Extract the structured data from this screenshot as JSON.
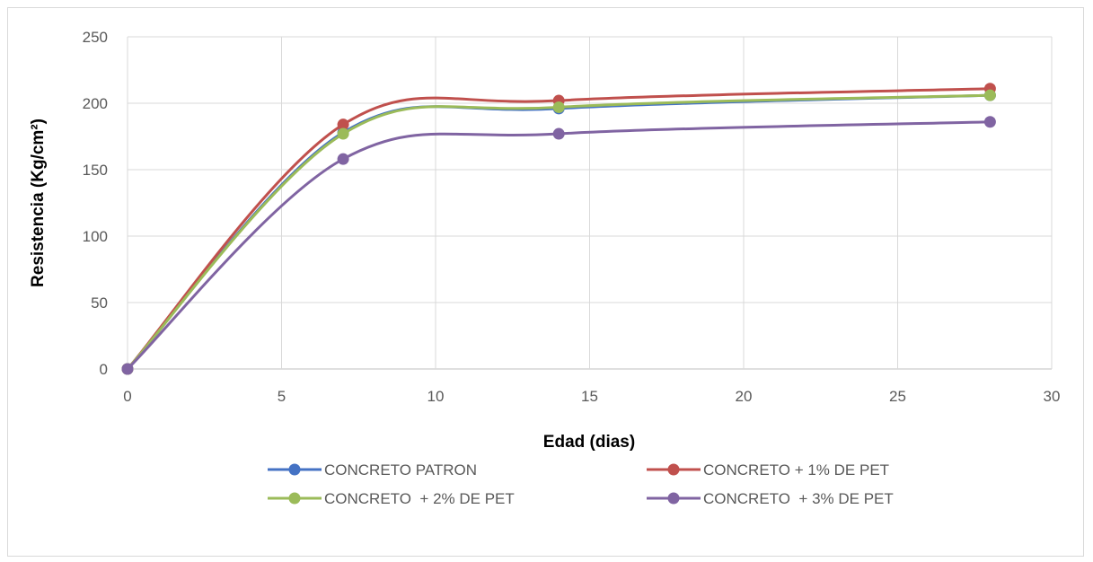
{
  "chart_data": {
    "type": "line",
    "xlabel": "Edad (dias)",
    "ylabel": "Resistencia  (Kg/cm²)",
    "xlim": [
      0,
      30
    ],
    "ylim": [
      0,
      250
    ],
    "x_ticks": [
      "0",
      "5",
      "10",
      "15",
      "20",
      "25",
      "30"
    ],
    "y_ticks": [
      "0",
      "50",
      "100",
      "150",
      "200",
      "250"
    ],
    "grid": true,
    "legend_position": "bottom",
    "smoothed": true,
    "series": [
      {
        "name": "CONCRETO PATRON",
        "color": "#4472c4",
        "x": [
          0,
          7,
          14,
          28
        ],
        "y": [
          0,
          178,
          196,
          206
        ]
      },
      {
        "name": "CONCRETO + 1% DE PET",
        "color": "#c0504d",
        "x": [
          0,
          7,
          14,
          28
        ],
        "y": [
          0,
          184,
          202,
          211
        ]
      },
      {
        "name": "CONCRETO  + 2% DE PET",
        "color": "#9bbb59",
        "x": [
          0,
          7,
          14,
          28
        ],
        "y": [
          0,
          177,
          197,
          206
        ]
      },
      {
        "name": "CONCRETO  + 3% DE PET",
        "color": "#8064a2",
        "x": [
          0,
          7,
          14,
          28
        ],
        "y": [
          0,
          158,
          177,
          186
        ]
      }
    ]
  }
}
